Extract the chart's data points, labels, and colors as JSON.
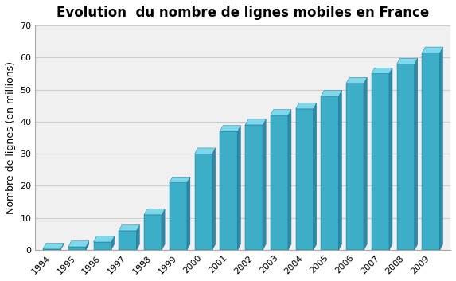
{
  "title": "Evolution  du nombre de lignes mobiles en France",
  "ylabel": "Nombre de lignes (en millions)",
  "years": [
    1994,
    1995,
    1996,
    1997,
    1998,
    1999,
    2000,
    2001,
    2002,
    2003,
    2004,
    2005,
    2006,
    2007,
    2008,
    2009
  ],
  "values": [
    0.3,
    1.0,
    2.5,
    6.0,
    11.0,
    21.0,
    30.0,
    37.0,
    39.0,
    42.0,
    44.0,
    48.0,
    52.0,
    55.0,
    58.0,
    61.5
  ],
  "bar_color_main": "#3daec8",
  "bar_color_right": "#2a8aaa",
  "bar_color_top": "#7dd8ec",
  "ylim": [
    0,
    70
  ],
  "yticks": [
    0,
    10,
    20,
    30,
    40,
    50,
    60,
    70
  ],
  "background_color": "#ffffff",
  "plot_bg_color": "#f0f0f0",
  "grid_color": "#cccccc",
  "title_fontsize": 12,
  "label_fontsize": 9,
  "tick_fontsize": 8
}
